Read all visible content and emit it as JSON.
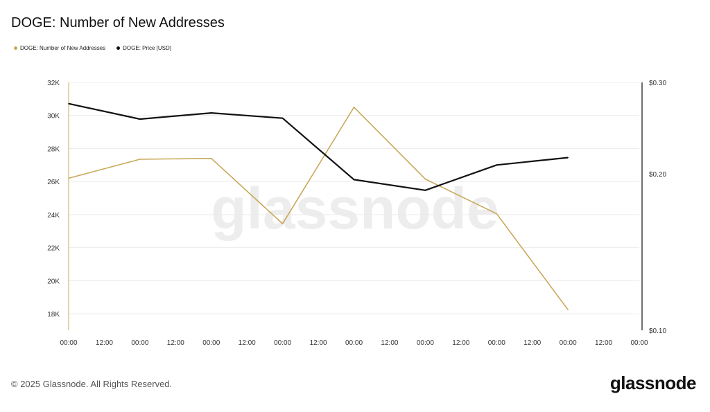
{
  "title": "DOGE: Number of New Addresses",
  "legend": [
    {
      "label": "DOGE: Number of New Addresses",
      "color": "#c8a95a"
    },
    {
      "label": "DOGE: Price [USD]",
      "color": "#111111"
    }
  ],
  "watermark": "glassnode",
  "footer": {
    "copyright": "© 2025 Glassnode. All Rights Reserved.",
    "logo": "glassnode"
  },
  "chart_data": {
    "type": "line",
    "x_ticks": [
      "00:00",
      "12:00",
      "00:00",
      "12:00",
      "00:00",
      "12:00",
      "00:00",
      "12:00",
      "00:00",
      "12:00",
      "00:00",
      "12:00",
      "00:00",
      "12:00",
      "00:00",
      "12:00",
      "00:00"
    ],
    "x": [
      0,
      2,
      4,
      6,
      8,
      10,
      12,
      14
    ],
    "left_axis": {
      "ticks": [
        "32K",
        "30K",
        "28K",
        "26K",
        "24K",
        "22K",
        "20K",
        "18K"
      ],
      "ylim": [
        17000,
        32000
      ]
    },
    "right_axis": {
      "ticks": [
        "$0.30",
        "$0.20",
        "$0.10"
      ],
      "ylim": [
        0.1,
        0.3
      ],
      "scale": "log"
    },
    "grid": true,
    "series": [
      {
        "name": "DOGE: Number of New Addresses",
        "axis": "left",
        "color": "#c8a95a",
        "values": [
          26200,
          27350,
          27400,
          23450,
          30500,
          26150,
          24050,
          18250
        ]
      },
      {
        "name": "DOGE: Price [USD]",
        "axis": "right",
        "color": "#111111",
        "values": [
          0.273,
          0.255,
          0.262,
          0.256,
          0.195,
          0.186,
          0.208,
          0.215
        ]
      }
    ]
  }
}
